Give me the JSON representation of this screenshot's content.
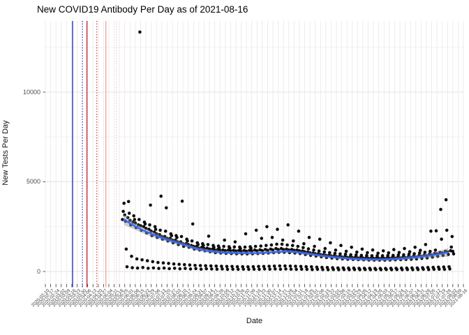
{
  "title": "New COVID19 Antibody Per Day as of 2021-08-16",
  "axes": {
    "x_label": "Date",
    "y_label": "New Tests Per Day"
  },
  "chart_data": {
    "type": "scatter",
    "title": "New COVID19 Antibody Per Day as of 2021-08-16",
    "xlabel": "Date",
    "ylabel": "New Tests Per Day",
    "legend": "none",
    "grid": "on",
    "x_axis": {
      "epoch": "2020-02-10",
      "end": "2021-08-16",
      "span_days": 553,
      "tick_interval_days": 7,
      "tick_labels": [
        "2020-02-10",
        "2020-02-17",
        "2020-02-24",
        "2020-03-02",
        "2020-03-09",
        "2020-03-16",
        "2020-03-23",
        "2020-03-30",
        "2020-04-06",
        "2020-04-13",
        "2020-04-20",
        "2020-04-27",
        "2020-05-04",
        "2020-05-11",
        "2020-05-18",
        "2020-05-25",
        "2020-06-01",
        "2020-06-08",
        "2020-06-15",
        "2020-06-22",
        "2020-06-29",
        "2020-07-06",
        "2020-07-13",
        "2020-07-20",
        "2020-07-27",
        "2020-08-03",
        "2020-08-10",
        "2020-08-17",
        "2020-08-24",
        "2020-08-31",
        "2020-09-07",
        "2020-09-14",
        "2020-09-21",
        "2020-09-28",
        "2020-10-05",
        "2020-10-12",
        "2020-10-19",
        "2020-10-26",
        "2020-11-02",
        "2020-11-09",
        "2020-11-16",
        "2020-11-23",
        "2020-11-30",
        "2020-12-07",
        "2020-12-14",
        "2020-12-21",
        "2020-12-28",
        "2021-01-04",
        "2021-01-11",
        "2021-01-18",
        "2021-01-25",
        "2021-02-01",
        "2021-02-08",
        "2021-02-15",
        "2021-02-22",
        "2021-03-01",
        "2021-03-08",
        "2021-03-15",
        "2021-03-22",
        "2021-03-29",
        "2021-04-05",
        "2021-04-12",
        "2021-04-19",
        "2021-04-26",
        "2021-05-03",
        "2021-05-10",
        "2021-05-17",
        "2021-05-24",
        "2021-05-31",
        "2021-06-07",
        "2021-06-14",
        "2021-06-21",
        "2021-06-28",
        "2021-07-05",
        "2021-07-12",
        "2021-07-19",
        "2021-07-26",
        "2021-08-02",
        "2021-08-09",
        "2021-08-16"
      ]
    },
    "y_axis": {
      "tick_labels": [
        "0",
        "5000",
        "10000"
      ],
      "major_ticks": [
        0,
        5000,
        10000
      ],
      "minor_ticks": [
        2500,
        7500,
        12500
      ],
      "ylim": [
        -700,
        13950
      ]
    },
    "points": {
      "note": "one point per day; index i is day offset (start_day_offset + i) after epoch",
      "start_day_offset": 102,
      "daily_values": [
        2900,
        3350,
        3800,
        3150,
        2800,
        1250,
        260,
        3000,
        3900,
        3250,
        2850,
        2600,
        850,
        210,
        2750,
        3100,
        2900,
        2700,
        2450,
        700,
        190,
        2600,
        2900,
        13350,
        2550,
        2300,
        650,
        220,
        2500,
        2750,
        2650,
        2400,
        2150,
        600,
        180,
        2350,
        2600,
        3700,
        2250,
        2000,
        550,
        200,
        2200,
        2500,
        2350,
        2100,
        1900,
        500,
        170,
        2050,
        2300,
        4200,
        1950,
        1800,
        480,
        190,
        1950,
        2250,
        3550,
        1850,
        1700,
        450,
        160,
        1850,
        2100,
        2000,
        1750,
        1600,
        420,
        180,
        1750,
        2000,
        1900,
        1650,
        1500,
        400,
        150,
        1650,
        1950,
        3920,
        1550,
        1400,
        380,
        170,
        1550,
        1800,
        1700,
        1500,
        1350,
        360,
        140,
        1450,
        1700,
        2650,
        1400,
        1250,
        340,
        160,
        1400,
        1600,
        1500,
        1300,
        1200,
        330,
        130,
        1350,
        1550,
        1450,
        1280,
        1150,
        320,
        150,
        1300,
        1500,
        1970,
        1250,
        1100,
        310,
        140,
        1250,
        1450,
        1350,
        1200,
        1050,
        300,
        130,
        1220,
        1420,
        1320,
        1180,
        1030,
        290,
        140,
        1200,
        1400,
        1750,
        1160,
        1010,
        280,
        120,
        1190,
        1380,
        1300,
        1150,
        1000,
        280,
        130,
        1180,
        1370,
        1650,
        1140,
        990,
        270,
        120,
        1170,
        1360,
        1280,
        1130,
        980,
        270,
        130,
        1170,
        1360,
        2100,
        1130,
        980,
        260,
        120,
        1180,
        1380,
        1300,
        1140,
        990,
        270,
        130,
        1200,
        1400,
        2300,
        1150,
        1000,
        280,
        120,
        1210,
        1420,
        1850,
        1160,
        1010,
        280,
        140,
        1230,
        1450,
        2500,
        1180,
        1030,
        290,
        130,
        1250,
        1480,
        1900,
        1200,
        1050,
        300,
        140,
        1280,
        1520,
        2350,
        1220,
        1070,
        310,
        130,
        1280,
        1520,
        1750,
        1220,
        1070,
        310,
        140,
        1250,
        1480,
        2600,
        1200,
        1050,
        300,
        130,
        1230,
        1450,
        1700,
        1180,
        1030,
        290,
        120,
        1200,
        1400,
        2250,
        1150,
        1000,
        280,
        130,
        1140,
        1330,
        1550,
        1100,
        950,
        270,
        120,
        1080,
        1260,
        1900,
        1040,
        900,
        260,
        110,
        1030,
        1200,
        1400,
        990,
        860,
        240,
        120,
        980,
        1140,
        1800,
        940,
        820,
        230,
        110,
        930,
        1090,
        1280,
        900,
        780,
        220,
        100,
        900,
        1050,
        1600,
        870,
        750,
        210,
        110,
        870,
        1010,
        1190,
        830,
        720,
        200,
        100,
        840,
        980,
        1450,
        810,
        700,
        200,
        110,
        820,
        960,
        1130,
        790,
        680,
        190,
        100,
        800,
        930,
        1350,
        770,
        670,
        190,
        110,
        790,
        920,
        1080,
        760,
        660,
        180,
        100,
        780,
        900,
        1250,
        750,
        650,
        180,
        110,
        760,
        890,
        1050,
        740,
        640,
        180,
        100,
        750,
        880,
        1200,
        730,
        630,
        170,
        110,
        750,
        880,
        1020,
        730,
        630,
        170,
        100,
        750,
        880,
        1150,
        730,
        630,
        170,
        110,
        760,
        890,
        1040,
        740,
        640,
        180,
        100,
        780,
        900,
        1220,
        750,
        650,
        180,
        110,
        790,
        920,
        1060,
        760,
        660,
        190,
        100,
        800,
        930,
        1280,
        770,
        670,
        190,
        110,
        820,
        960,
        1100,
        790,
        680,
        200,
        100,
        850,
        990,
        1350,
        810,
        700,
        200,
        110,
        880,
        1030,
        1180,
        850,
        730,
        210,
        120,
        910,
        1070,
        1500,
        880,
        760,
        220,
        110,
        960,
        1120,
        2250,
        920,
        800,
        230,
        120,
        1010,
        1190,
        2270,
        980,
        850,
        240,
        130,
        1070,
        3460,
        1800,
        1030,
        900,
        250,
        120,
        1130,
        4000,
        2300,
        1090,
        950,
        260,
        140,
        1160,
        1360,
        1950,
        1120,
        980
      ]
    },
    "smooth": {
      "type": "loess",
      "days": [
        104,
        115,
        129,
        143,
        157,
        171,
        185,
        198,
        217,
        235,
        258,
        282,
        305,
        318,
        332,
        346,
        365,
        383,
        401,
        420,
        438,
        457,
        475,
        494,
        508,
        517,
        526,
        533
      ],
      "values": [
        2900,
        2600,
        2300,
        2050,
        1830,
        1650,
        1480,
        1280,
        1130,
        1060,
        1025,
        1030,
        1090,
        1120,
        1080,
        1000,
        880,
        790,
        720,
        680,
        660,
        680,
        730,
        810,
        880,
        940,
        1010,
        1070
      ],
      "ribbon_halfwidth": [
        300,
        210,
        170,
        150,
        135,
        125,
        115,
        105,
        95,
        90,
        85,
        85,
        85,
        85,
        85,
        85,
        85,
        85,
        85,
        85,
        85,
        90,
        95,
        110,
        130,
        160,
        200,
        240
      ]
    },
    "event_lines": [
      {
        "date": "2020-03-17",
        "day": 36,
        "color": "#2222bb",
        "style": "solid"
      },
      {
        "date": "2020-03-30",
        "day": 49,
        "color": "#2222bb",
        "style": "dotted"
      },
      {
        "date": "2020-04-05",
        "day": 55,
        "color": "#cc2222",
        "style": "solid"
      },
      {
        "date": "2020-04-18",
        "day": 68,
        "color": "#cc2222",
        "style": "dotted"
      },
      {
        "date": "2020-04-30",
        "day": 80,
        "color": "#f2a0a0",
        "style": "solid"
      },
      {
        "date": "2020-05-14",
        "day": 94,
        "color": "#f5b8b8",
        "style": "dotted"
      }
    ],
    "colors": {
      "point": "#0d0d0d",
      "smooth_line": "#3366ff",
      "ribbon": "#8c8c8c",
      "grid_major": "#e3e3e3",
      "grid_minor": "#f1f1f1",
      "grid_vertical": "#e7e7e7",
      "tick": "#333333",
      "axis_text": "#4d4d4d"
    }
  }
}
